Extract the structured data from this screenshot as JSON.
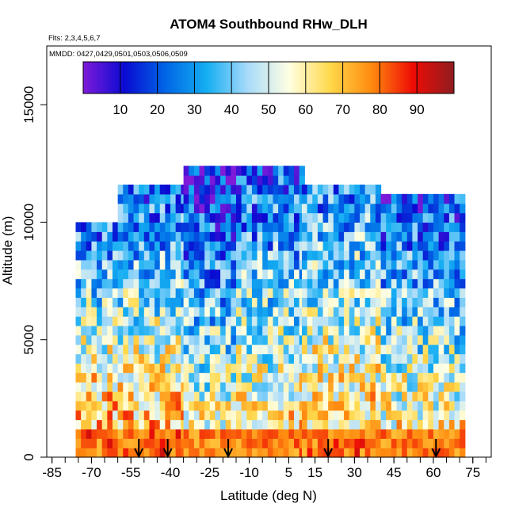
{
  "chart_data": {
    "type": "heatmap",
    "title": "ATOM4 Southbound RHw_DLH",
    "flights_note": "Flts: 2,3,4,5,6,7",
    "dates_note": "MMDD: 0427,0429,0501,0503,0506,0509",
    "xlabel": "Latitude (deg N)",
    "ylabel": "Altitude (m)",
    "xlim": [
      -87,
      82
    ],
    "ylim": [
      0,
      17500
    ],
    "x_ticks": [
      -85,
      -70,
      -55,
      -40,
      -25,
      -10,
      5,
      15,
      30,
      45,
      60,
      75
    ],
    "y_ticks": [
      0,
      5000,
      10000,
      15000
    ],
    "colorbar": {
      "range": [
        0,
        100
      ],
      "ticks": [
        10,
        20,
        30,
        40,
        50,
        60,
        70,
        80,
        90
      ],
      "colors": [
        "#7e1bd9",
        "#0a0ad2",
        "#0066e6",
        "#15aef2",
        "#a9dbfa",
        "#ffffe2",
        "#ffd84a",
        "#ff8a0f",
        "#ee0c05",
        "#8f1c20"
      ]
    },
    "profile_latitudes": [
      -52,
      -41,
      -18,
      20,
      61
    ],
    "curtain": {
      "lat_step": 2,
      "alt_step": 400,
      "bands": [
        {
          "lat_min": -76,
          "lat_max": -60,
          "alt_max": 10000,
          "rh_low": 78,
          "rh_high": 25
        },
        {
          "lat_min": -60,
          "lat_max": -35,
          "alt_max": 11600,
          "rh_low": 75,
          "rh_high": 22
        },
        {
          "lat_min": -35,
          "lat_max": -15,
          "alt_max": 12200,
          "rh_low": 62,
          "rh_high": 12
        },
        {
          "lat_min": -15,
          "lat_max": 10,
          "alt_max": 12200,
          "rh_low": 68,
          "rh_high": 20
        },
        {
          "lat_min": 10,
          "lat_max": 40,
          "alt_max": 11500,
          "rh_low": 72,
          "rh_high": 28
        },
        {
          "lat_min": 40,
          "lat_max": 72,
          "alt_max": 11000,
          "rh_low": 66,
          "rh_high": 18
        }
      ]
    }
  }
}
